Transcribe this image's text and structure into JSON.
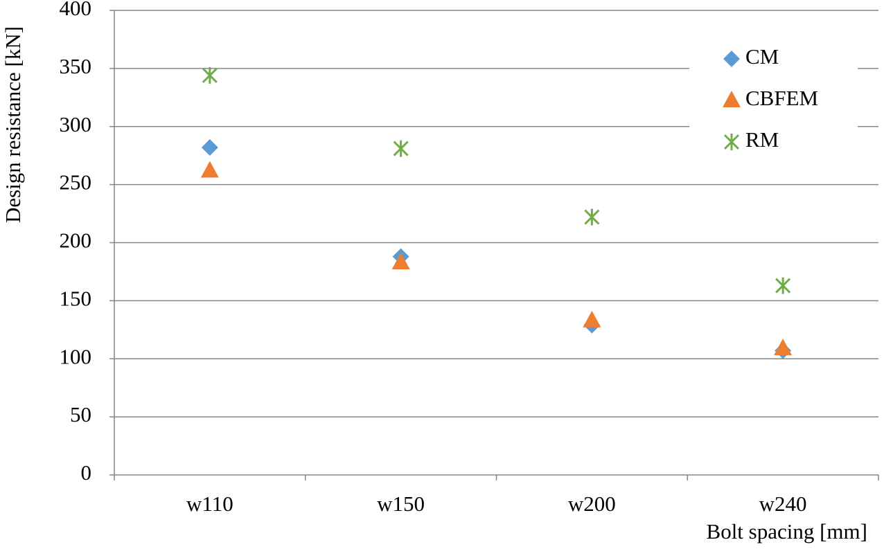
{
  "chart_data": {
    "type": "scatter",
    "x_label": "Bolt spacing [mm]",
    "y_label": "Design resistance [kN]",
    "categories": [
      "w110",
      "w150",
      "w200",
      "w240"
    ],
    "series": [
      {
        "name": "CM",
        "color": "#5b9bd5",
        "marker": "diamond",
        "values": [
          282,
          188,
          129,
          107
        ]
      },
      {
        "name": "CBFEM",
        "color": "#ed7d31",
        "marker": "triangle",
        "values": [
          262,
          183,
          133,
          109
        ]
      },
      {
        "name": "RM",
        "color": "#70ad47",
        "marker": "asterisk",
        "values": [
          344,
          281,
          222,
          163
        ]
      }
    ],
    "ylim": [
      0,
      400
    ],
    "yticks": [
      0,
      50,
      100,
      150,
      200,
      250,
      300,
      350,
      400
    ],
    "grid": true,
    "legend": "upper-right"
  }
}
